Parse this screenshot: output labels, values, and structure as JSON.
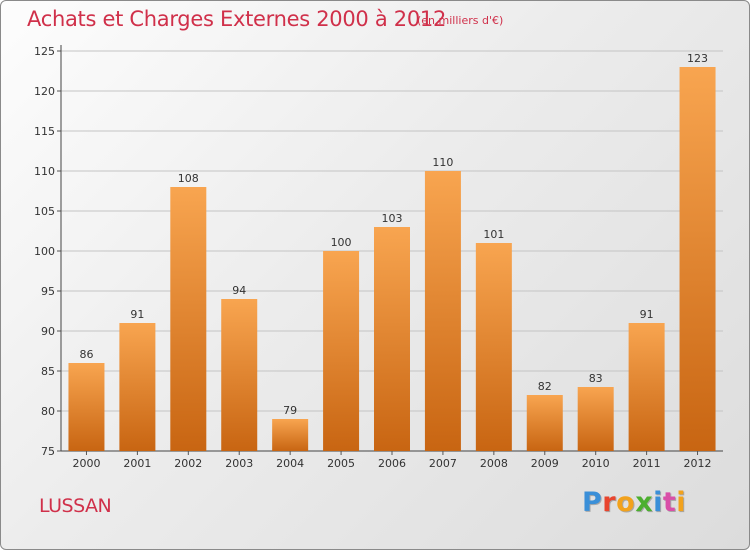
{
  "header": {
    "title": "Achats et Charges Externes 2000 à 2012",
    "unit": "(en milliers d'€)"
  },
  "commune": "LUSSAN",
  "logo": {
    "text": "Proxiti",
    "letter_colors": [
      "#3a8fd8",
      "#e8452e",
      "#f2a21c",
      "#4caf2f",
      "#3a8fd8",
      "#d94fa8",
      "#f2a21c"
    ]
  },
  "colors": {
    "bar_top": "#f8a550",
    "bar_bottom": "#c86512",
    "title": "#d0304a"
  },
  "chart_data": {
    "type": "bar",
    "title": "Achats et Charges Externes 2000 à 2012",
    "subtitle": "(en milliers d'€)",
    "categories": [
      "2000",
      "2001",
      "2002",
      "2003",
      "2004",
      "2005",
      "2006",
      "2007",
      "2008",
      "2009",
      "2010",
      "2011",
      "2012"
    ],
    "values": [
      86,
      91,
      108,
      94,
      79,
      100,
      103,
      110,
      101,
      82,
      83,
      91,
      123
    ],
    "ylim": [
      75,
      125
    ],
    "yticks": [
      75,
      80,
      85,
      90,
      95,
      100,
      105,
      110,
      115,
      120,
      125
    ],
    "grid": true,
    "data_labels": true
  }
}
